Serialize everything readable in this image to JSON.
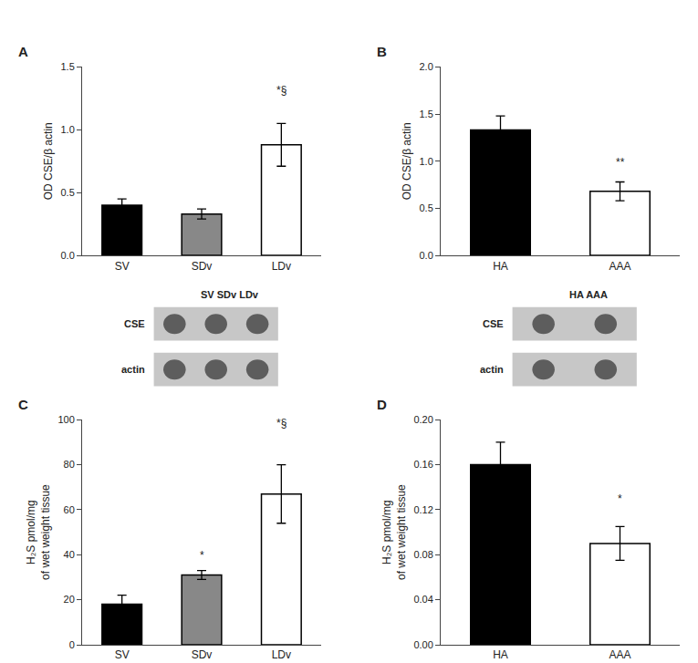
{
  "chart_data": [
    {
      "type": "bar",
      "title": "A",
      "categories": [
        "SV",
        "SDv",
        "LDv"
      ],
      "values": [
        0.4,
        0.33,
        0.88
      ],
      "errors": [
        0.05,
        0.04,
        0.17
      ],
      "colors": [
        "#000000",
        "#888888",
        "#ffffff"
      ],
      "ylabel": "OD CSE/β actin",
      "ylim": [
        0.0,
        1.5
      ],
      "yticks": [
        {
          "value": 0.0,
          "label": "0.0"
        },
        {
          "value": 0.5,
          "label": "0.5"
        },
        {
          "value": 1.0,
          "label": "1.0"
        },
        {
          "value": 1.5,
          "label": "1.5"
        }
      ],
      "annotations": [
        {
          "text": "*§",
          "category": "LDv",
          "y": 1.25
        }
      ],
      "grid": false,
      "blot": {
        "header": "SV SDv LDv",
        "rows": [
          "CSE",
          "actin"
        ]
      }
    },
    {
      "type": "bar",
      "title": "B",
      "categories": [
        "HA",
        "AAA"
      ],
      "values": [
        1.33,
        0.68
      ],
      "errors": [
        0.15,
        0.1
      ],
      "colors": [
        "#000000",
        "#ffffff"
      ],
      "ylabel": "OD CSE/β actin",
      "ylim": [
        0.0,
        2.0
      ],
      "yticks": [
        {
          "value": 0.0,
          "label": "0.0"
        },
        {
          "value": 0.5,
          "label": "0.5"
        },
        {
          "value": 1.0,
          "label": "1.0"
        },
        {
          "value": 1.5,
          "label": "1.5"
        },
        {
          "value": 2.0,
          "label": "2.0"
        }
      ],
      "annotations": [
        {
          "text": "**",
          "category": "AAA",
          "y": 0.9
        }
      ],
      "grid": false,
      "blot": {
        "header": "HA AAA",
        "rows": [
          "CSE",
          "actin"
        ]
      }
    },
    {
      "type": "bar",
      "title": "C",
      "categories": [
        "SV",
        "SDv",
        "LDv"
      ],
      "values": [
        18.0,
        31.0,
        67.0
      ],
      "errors": [
        4.0,
        2.0,
        13.0
      ],
      "colors": [
        "#000000",
        "#888888",
        "#ffffff"
      ],
      "ylabel": "H₂S pmol/mg\nof wet weight tissue",
      "ylim": [
        0,
        100
      ],
      "yticks": [
        0,
        20,
        40,
        60,
        80,
        100
      ],
      "annotations": [
        {
          "text": "*",
          "category": "SDv",
          "y": 36.0
        },
        {
          "text": "*§",
          "category": "LDv",
          "y": 95.0
        }
      ],
      "grid": false
    },
    {
      "type": "bar",
      "title": "D",
      "categories": [
        "HA",
        "AAA"
      ],
      "values": [
        0.16,
        0.09
      ],
      "errors": [
        0.02,
        0.015
      ],
      "colors": [
        "#000000",
        "#ffffff"
      ],
      "ylabel": "H₂S pmol/mg\nof wet weight tissue",
      "ylim": [
        0.0,
        0.2
      ],
      "yticks": [
        {
          "value": 0.0,
          "label": "0.00"
        },
        {
          "value": 0.04,
          "label": "0.04"
        },
        {
          "value": 0.08,
          "label": "0.08"
        },
        {
          "value": 0.12,
          "label": "0.12"
        },
        {
          "value": 0.16,
          "label": "0.16"
        },
        {
          "value": 0.2,
          "label": "0.20"
        }
      ],
      "annotations": [
        {
          "text": "*",
          "category": "AAA",
          "y": 0.122
        }
      ],
      "grid": false
    }
  ]
}
